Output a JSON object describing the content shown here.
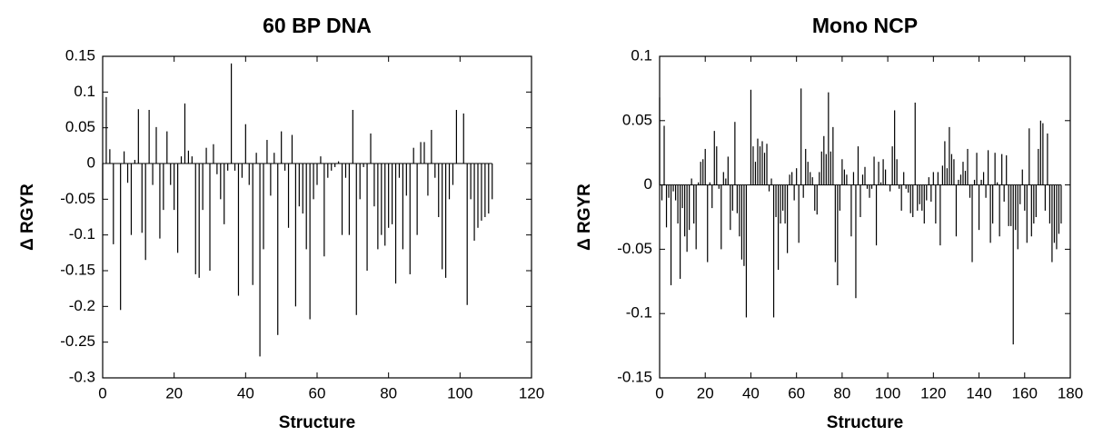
{
  "chart_data": [
    {
      "type": "bar",
      "title": "60 BP DNA",
      "x_label": "Structure",
      "y_label": "Δ RGYR",
      "color": "#000000",
      "x": [
        0,
        1,
        2,
        3,
        4,
        5,
        6,
        7,
        8,
        9,
        10,
        11,
        12,
        13,
        14,
        15,
        16,
        17,
        18,
        19,
        20,
        21,
        22,
        23,
        24,
        25,
        26,
        27,
        28,
        29,
        30,
        31,
        32,
        33,
        34,
        35,
        36,
        37,
        38,
        39,
        40,
        41,
        42,
        43,
        44,
        45,
        46,
        47,
        48,
        49,
        50,
        51,
        52,
        53,
        54,
        55,
        56,
        57,
        58,
        59,
        60,
        61,
        62,
        63,
        64,
        65,
        66,
        67,
        68,
        69,
        70,
        71,
        72,
        73,
        74,
        75,
        76,
        77,
        78,
        79,
        80,
        81,
        82,
        83,
        84,
        85,
        86,
        87,
        88,
        89,
        90,
        91,
        92,
        93,
        94,
        95,
        96,
        97,
        98,
        99,
        100,
        101,
        102,
        103,
        104,
        105,
        106,
        107,
        108,
        109
      ],
      "values": [
        -0.05,
        0.093,
        0.02,
        -0.113,
        0.0,
        -0.205,
        0.017,
        -0.027,
        -0.1,
        0.005,
        0.076,
        -0.097,
        -0.135,
        0.075,
        -0.03,
        0.051,
        -0.105,
        -0.065,
        0.045,
        -0.03,
        -0.065,
        -0.125,
        0.01,
        0.084,
        0.018,
        0.01,
        -0.155,
        -0.16,
        -0.065,
        0.022,
        -0.15,
        0.027,
        -0.015,
        -0.05,
        -0.085,
        -0.01,
        0.14,
        -0.01,
        -0.185,
        -0.02,
        0.055,
        -0.03,
        -0.17,
        0.015,
        -0.27,
        -0.12,
        0.033,
        -0.045,
        0.015,
        -0.24,
        0.045,
        -0.01,
        -0.09,
        0.04,
        -0.2,
        -0.06,
        -0.07,
        -0.12,
        -0.218,
        -0.05,
        -0.03,
        0.01,
        -0.13,
        -0.02,
        -0.01,
        -0.005,
        0.003,
        -0.1,
        -0.02,
        -0.1,
        0.075,
        -0.212,
        -0.05,
        -0.005,
        -0.15,
        0.042,
        -0.06,
        -0.12,
        -0.1,
        -0.115,
        -0.09,
        -0.085,
        -0.168,
        -0.02,
        -0.12,
        -0.045,
        -0.155,
        0.022,
        -0.1,
        0.03,
        0.03,
        -0.045,
        0.047,
        -0.02,
        -0.075,
        -0.148,
        -0.16,
        -0.05,
        -0.03,
        0.075,
        0.0,
        0.07,
        -0.198,
        -0.05,
        -0.108,
        -0.09,
        -0.08,
        -0.075,
        -0.07,
        -0.05
      ],
      "xlim": [
        0,
        120
      ],
      "xticks": [
        0,
        20,
        40,
        60,
        80,
        100,
        120
      ],
      "ylim": [
        -0.3,
        0.15
      ],
      "yticks": [
        -0.3,
        -0.25,
        -0.2,
        -0.15,
        -0.1,
        -0.05,
        0,
        0.05,
        0.1,
        0.15
      ]
    },
    {
      "type": "bar",
      "title": "Mono NCP",
      "x_label": "Structure",
      "y_label": "Δ RGYR",
      "color": "#000000",
      "x": [
        0,
        1,
        2,
        3,
        4,
        5,
        6,
        7,
        8,
        9,
        10,
        11,
        12,
        13,
        14,
        15,
        16,
        17,
        18,
        19,
        20,
        21,
        22,
        23,
        24,
        25,
        26,
        27,
        28,
        29,
        30,
        31,
        32,
        33,
        34,
        35,
        36,
        37,
        38,
        39,
        40,
        41,
        42,
        43,
        44,
        45,
        46,
        47,
        48,
        49,
        50,
        51,
        52,
        53,
        54,
        55,
        56,
        57,
        58,
        59,
        60,
        61,
        62,
        63,
        64,
        65,
        66,
        67,
        68,
        69,
        70,
        71,
        72,
        73,
        74,
        75,
        76,
        77,
        78,
        79,
        80,
        81,
        82,
        83,
        84,
        85,
        86,
        87,
        88,
        89,
        90,
        91,
        92,
        93,
        94,
        95,
        96,
        97,
        98,
        99,
        100,
        101,
        102,
        103,
        104,
        105,
        106,
        107,
        108,
        109,
        110,
        111,
        112,
        113,
        114,
        115,
        116,
        117,
        118,
        119,
        120,
        121,
        122,
        123,
        124,
        125,
        126,
        127,
        128,
        129,
        130,
        131,
        132,
        133,
        134,
        135,
        136,
        137,
        138,
        139,
        140,
        141,
        142,
        143,
        144,
        145,
        146,
        147,
        148,
        149,
        150,
        151,
        152,
        153,
        154,
        155,
        156,
        157,
        158,
        159,
        160,
        161,
        162,
        163,
        164,
        165,
        166,
        167,
        168,
        169,
        170,
        171,
        172,
        173,
        174,
        175,
        176
      ],
      "values": [
        0.068,
        -0.012,
        0.046,
        -0.033,
        -0.01,
        -0.078,
        -0.005,
        -0.012,
        -0.03,
        -0.073,
        -0.018,
        -0.04,
        -0.052,
        -0.035,
        0.005,
        -0.03,
        -0.05,
        0.002,
        0.018,
        0.02,
        0.028,
        -0.06,
        0.002,
        -0.018,
        0.042,
        0.03,
        -0.003,
        -0.05,
        0.01,
        0.005,
        0.022,
        -0.035,
        -0.02,
        0.049,
        -0.022,
        -0.04,
        -0.058,
        -0.063,
        -0.103,
        0.0,
        0.074,
        0.03,
        0.018,
        0.036,
        0.03,
        0.034,
        0.025,
        0.032,
        -0.005,
        0.005,
        -0.103,
        -0.025,
        -0.066,
        -0.03,
        -0.02,
        -0.03,
        -0.053,
        0.008,
        0.01,
        -0.012,
        0.013,
        -0.045,
        0.075,
        -0.01,
        0.028,
        0.018,
        0.01,
        0.006,
        -0.02,
        -0.023,
        0.01,
        0.026,
        0.038,
        0.024,
        0.072,
        0.026,
        0.045,
        -0.06,
        -0.078,
        -0.02,
        0.02,
        0.012,
        0.008,
        0.0,
        -0.04,
        0.01,
        -0.088,
        0.03,
        -0.025,
        0.008,
        0.014,
        -0.003,
        -0.01,
        -0.003,
        0.022,
        -0.047,
        0.018,
        0.002,
        0.02,
        0.012,
        0.0,
        -0.005,
        0.03,
        0.058,
        0.02,
        -0.003,
        -0.02,
        0.01,
        -0.003,
        -0.006,
        -0.022,
        -0.025,
        0.064,
        -0.02,
        -0.015,
        -0.02,
        -0.03,
        -0.012,
        0.006,
        -0.013,
        0.01,
        -0.03,
        0.01,
        -0.047,
        0.015,
        0.034,
        0.013,
        0.045,
        0.024,
        0.02,
        -0.04,
        0.004,
        0.008,
        0.018,
        0.011,
        0.028,
        -0.01,
        -0.06,
        0.004,
        0.025,
        -0.035,
        0.004,
        0.01,
        -0.01,
        0.027,
        -0.045,
        -0.03,
        0.025,
        0.002,
        -0.04,
        0.024,
        -0.013,
        0.023,
        -0.032,
        -0.032,
        -0.124,
        -0.035,
        -0.05,
        -0.015,
        0.012,
        -0.02,
        -0.045,
        0.044,
        -0.04,
        -0.03,
        -0.025,
        0.028,
        0.05,
        0.048,
        -0.02,
        0.04,
        -0.03,
        -0.06,
        -0.045,
        -0.05,
        -0.038,
        -0.03
      ],
      "xlim": [
        0,
        180
      ],
      "xticks": [
        0,
        20,
        40,
        60,
        80,
        100,
        120,
        140,
        160,
        180
      ],
      "ylim": [
        -0.15,
        0.1
      ],
      "yticks": [
        -0.15,
        -0.1,
        -0.05,
        0,
        0.05,
        0.1
      ]
    }
  ]
}
